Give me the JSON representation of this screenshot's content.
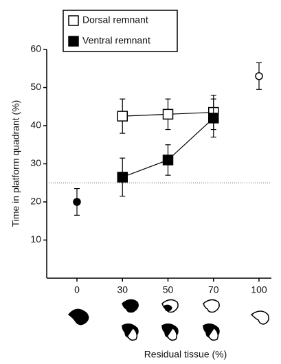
{
  "chart_data": {
    "type": "line",
    "x_label": "Residual tissue (%)",
    "y_label": "Time in platform quadrant (%)",
    "categories": [
      "0",
      "30",
      "50",
      "70",
      "100"
    ],
    "ylim": [
      0,
      60
    ],
    "yticks": [
      10,
      20,
      30,
      40,
      50,
      60
    ],
    "reference_line": 25,
    "series": [
      {
        "name": "Dorsal remnant",
        "color": "#000000",
        "marker": "open-square",
        "values": [
          null,
          42.5,
          43,
          43.5,
          null
        ],
        "errors": [
          null,
          4.5,
          4,
          4.5,
          null
        ]
      },
      {
        "name": "Ventral remnant",
        "color": "#000000",
        "marker": "filled-square",
        "values": [
          null,
          26.5,
          31,
          42,
          null
        ],
        "errors": [
          null,
          5,
          4,
          5,
          null
        ]
      },
      {
        "color": "#000000",
        "marker": "filled-circle",
        "values": [
          20,
          null,
          null,
          null,
          null
        ],
        "errors": [
          3.5,
          null,
          null,
          null,
          null
        ]
      },
      {
        "color": "#000000",
        "marker": "open-circle",
        "values": [
          null,
          null,
          null,
          null,
          53
        ],
        "errors": [
          null,
          null,
          null,
          null,
          3.5
        ]
      }
    ]
  }
}
